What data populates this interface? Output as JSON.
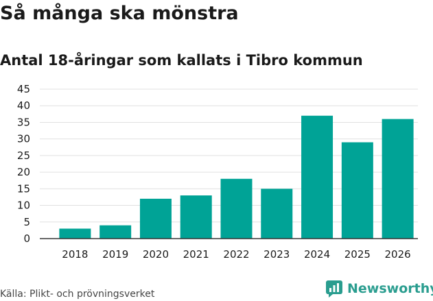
{
  "header": {
    "title": "Så många ska mönstra",
    "subtitle": "Antal 18-åringar som kallats i Tibro kommun"
  },
  "footer": {
    "source": "Källa: Plikt- och prövningsverket",
    "brand": "Newsworthy"
  },
  "colors": {
    "bar": "#00a396",
    "grid": "#e0e0e0",
    "axis": "#333333",
    "brand": "#2a9d8f"
  },
  "chart_data": {
    "type": "bar",
    "categories": [
      "2018",
      "2019",
      "2020",
      "2021",
      "2022",
      "2023",
      "2024",
      "2025",
      "2026"
    ],
    "values": [
      3,
      4,
      12,
      13,
      18,
      15,
      37,
      29,
      36
    ],
    "title": "Så många ska mönstra",
    "subtitle": "Antal 18-åringar som kallats i Tibro kommun",
    "xlabel": "",
    "ylabel": "",
    "ylim": [
      0,
      45
    ],
    "yticks": [
      0,
      5,
      10,
      15,
      20,
      25,
      30,
      35,
      40,
      45
    ],
    "grid": true,
    "legend": "none"
  }
}
